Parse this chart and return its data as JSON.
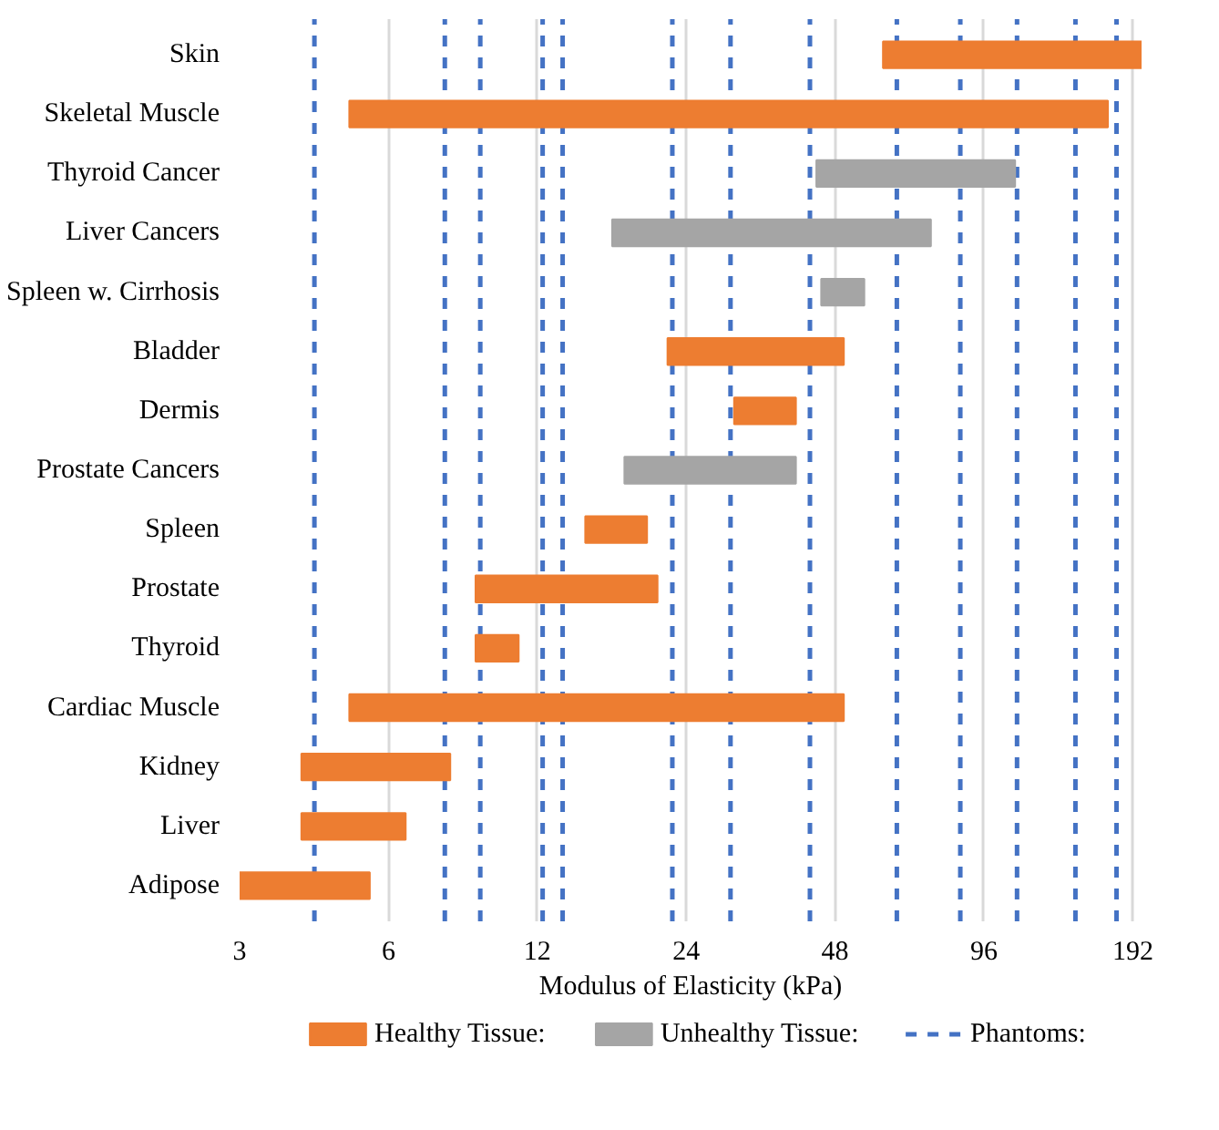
{
  "chart_data": {
    "type": "bar",
    "orientation": "horizontal",
    "log": "x",
    "xlabel": "Modulus of Elasticity (kPa)",
    "categories": [
      "Skin",
      "Skeletal Muscle",
      "Thyroid Cancer",
      "Liver Cancers",
      "Spleen w. Cirrhosis",
      "Bladder",
      "Dermis",
      "Prostate Cancers",
      "Spleen",
      "Prostate",
      "Thyroid",
      "Cardiac Muscle",
      "Kidney",
      "Liver",
      "Adipose"
    ],
    "series": [
      {
        "name": "Healthy Tissue:",
        "color": "#ed7d31",
        "base": [
          60,
          5,
          null,
          null,
          null,
          22,
          30,
          null,
          15,
          9,
          9,
          5,
          4,
          4,
          3
        ],
        "values": [
          140,
          166,
          null,
          null,
          null,
          28,
          10,
          null,
          5,
          12,
          2,
          45,
          4,
          2.5,
          2.5
        ]
      },
      {
        "name": "Unhealthy Tissue:",
        "color": "#a5a5a5",
        "base": [
          null,
          null,
          44,
          17,
          45,
          null,
          null,
          18,
          null,
          null,
          null,
          null,
          null,
          null,
          null
        ],
        "values": [
          null,
          null,
          67,
          58,
          10,
          null,
          null,
          22,
          null,
          null,
          null,
          null,
          null,
          null,
          null
        ]
      }
    ],
    "ref_lines": [
      {
        "axis": "x",
        "value": 4.25,
        "label": "Phantoms:",
        "color": "#4472c4",
        "line_style": "dashed"
      },
      {
        "axis": "x",
        "value": 7.8,
        "color": "#4472c4",
        "line_style": "dashed"
      },
      {
        "axis": "x",
        "value": 9.2,
        "color": "#4472c4",
        "line_style": "dashed"
      },
      {
        "axis": "x",
        "value": 12.3,
        "color": "#4472c4",
        "line_style": "dashed"
      },
      {
        "axis": "x",
        "value": 13.5,
        "color": "#4472c4",
        "line_style": "dashed"
      },
      {
        "axis": "x",
        "value": 22.5,
        "color": "#4472c4",
        "line_style": "dashed"
      },
      {
        "axis": "x",
        "value": 29.5,
        "color": "#4472c4",
        "line_style": "dashed"
      },
      {
        "axis": "x",
        "value": 42.7,
        "color": "#4472c4",
        "line_style": "dashed"
      },
      {
        "axis": "x",
        "value": 64,
        "color": "#4472c4",
        "line_style": "dashed"
      },
      {
        "axis": "x",
        "value": 86,
        "color": "#4472c4",
        "line_style": "dashed"
      },
      {
        "axis": "x",
        "value": 112,
        "color": "#4472c4",
        "line_style": "dashed"
      },
      {
        "axis": "x",
        "value": 147,
        "color": "#4472c4",
        "line_style": "dashed"
      },
      {
        "axis": "x",
        "value": 178,
        "color": "#4472c4",
        "line_style": "dashed"
      }
    ],
    "xlim": [
      3,
      200
    ],
    "xticks": [
      3,
      6,
      12,
      24,
      48,
      96,
      192
    ],
    "grid": "x",
    "legend": "bottom"
  }
}
